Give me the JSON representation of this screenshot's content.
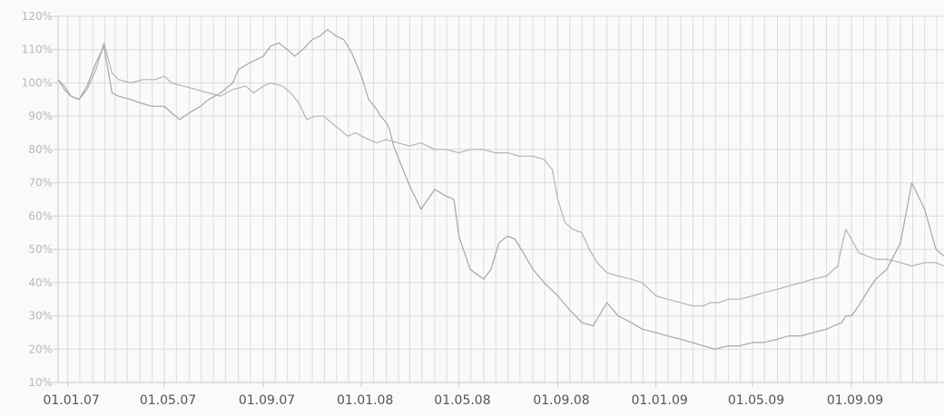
{
  "chart_data": {
    "type": "line",
    "y_tick_labels": [
      "10%",
      "20%",
      "30%",
      "40%",
      "50%",
      "60%",
      "70%",
      "80%",
      "90%",
      "100%",
      "110%",
      "120%"
    ],
    "x_tick_labels": [
      "01.01.07",
      "01.05.07",
      "01.09.07",
      "01.01.08",
      "01.05.08",
      "01.09.08",
      "01.01.09",
      "01.05.09",
      "01.09.09"
    ],
    "ylim": [
      10,
      120
    ],
    "xlim": [
      "2006-12-20",
      "2009-12-25"
    ],
    "grid": true,
    "colors": {
      "grid": "#dcdcdc",
      "series_a": "#b4b4b4",
      "series_b": "#a6a6a6",
      "y_labels": "#b8b8b8",
      "x_labels": "#555555"
    },
    "series": [
      {
        "x": [
          "2006-12-20",
          "2006-12-28",
          "2007-01-05",
          "2007-01-15",
          "2007-01-25",
          "2007-02-05",
          "2007-02-15",
          "2007-02-25",
          "2007-03-05",
          "2007-03-20",
          "2007-04-05",
          "2007-04-20",
          "2007-05-01",
          "2007-05-10",
          "2007-05-25",
          "2007-06-10",
          "2007-06-25",
          "2007-07-10",
          "2007-07-25",
          "2007-08-10",
          "2007-08-20",
          "2007-09-01",
          "2007-09-10",
          "2007-09-25",
          "2007-10-05",
          "2007-10-15",
          "2007-10-25",
          "2007-11-05",
          "2007-11-15",
          "2007-11-25",
          "2007-12-05",
          "2007-12-15",
          "2007-12-25",
          "2008-01-01",
          "2008-01-10",
          "2008-01-20",
          "2008-02-01",
          "2008-02-15",
          "2008-03-01",
          "2008-03-15",
          "2008-04-01",
          "2008-04-15",
          "2008-05-01",
          "2008-05-15",
          "2008-06-01",
          "2008-06-15",
          "2008-07-01",
          "2008-07-15",
          "2008-08-01",
          "2008-08-15",
          "2008-08-25",
          "2008-09-01",
          "2008-09-10",
          "2008-09-20",
          "2008-10-01",
          "2008-10-10",
          "2008-10-20",
          "2008-11-01",
          "2008-11-15",
          "2008-12-01",
          "2008-12-15",
          "2009-01-01",
          "2009-01-15",
          "2009-02-01",
          "2009-02-15",
          "2009-03-01",
          "2009-03-10",
          "2009-03-20",
          "2009-04-01",
          "2009-04-15",
          "2009-05-01",
          "2009-05-15",
          "2009-06-01",
          "2009-06-15",
          "2009-07-01",
          "2009-07-15",
          "2009-08-01",
          "2009-08-15",
          "2009-08-20",
          "2009-08-25",
          "2009-09-01",
          "2009-09-10",
          "2009-09-20",
          "2009-10-01",
          "2009-10-15",
          "2009-11-01",
          "2009-11-15",
          "2009-12-01",
          "2009-12-15",
          "2009-12-25"
        ],
        "values": [
          101,
          99,
          96,
          95,
          98,
          104,
          112,
          103,
          101,
          100,
          101,
          101,
          102,
          100,
          99,
          98,
          97,
          96,
          98,
          99,
          97,
          99,
          100,
          99,
          97,
          94,
          89,
          90,
          90,
          88,
          86,
          84,
          85,
          84,
          83,
          82,
          83,
          82,
          81,
          82,
          80,
          80,
          79,
          80,
          80,
          79,
          79,
          78,
          78,
          77,
          74,
          65,
          58,
          56,
          55,
          50,
          46,
          43,
          42,
          41,
          40,
          36,
          35,
          34,
          33,
          33,
          34,
          34,
          35,
          35,
          36,
          37,
          38,
          39,
          40,
          41,
          42,
          45,
          51,
          56,
          53,
          49,
          48,
          47,
          47,
          46,
          45,
          46,
          46,
          45
        ]
      },
      {
        "x": [
          "2006-12-20",
          "2006-12-28",
          "2007-01-05",
          "2007-01-15",
          "2007-01-25",
          "2007-02-05",
          "2007-02-15",
          "2007-02-25",
          "2007-03-05",
          "2007-03-20",
          "2007-04-01",
          "2007-04-15",
          "2007-05-01",
          "2007-05-10",
          "2007-05-20",
          "2007-06-01",
          "2007-06-15",
          "2007-06-25",
          "2007-07-10",
          "2007-07-25",
          "2007-08-01",
          "2007-08-15",
          "2007-09-01",
          "2007-09-10",
          "2007-09-20",
          "2007-10-01",
          "2007-10-10",
          "2007-10-20",
          "2007-11-01",
          "2007-11-10",
          "2007-11-20",
          "2007-12-01",
          "2007-12-10",
          "2007-12-20",
          "2008-01-01",
          "2008-01-10",
          "2008-01-20",
          "2008-01-25",
          "2008-02-01",
          "2008-02-05",
          "2008-02-10",
          "2008-02-20",
          "2008-03-01",
          "2008-03-15",
          "2008-04-01",
          "2008-04-15",
          "2008-04-25",
          "2008-05-01",
          "2008-05-15",
          "2008-06-01",
          "2008-06-10",
          "2008-06-20",
          "2008-07-01",
          "2008-07-10",
          "2008-07-20",
          "2008-08-01",
          "2008-08-15",
          "2008-09-01",
          "2008-09-15",
          "2008-10-01",
          "2008-10-15",
          "2008-11-01",
          "2008-11-15",
          "2008-12-01",
          "2008-12-15",
          "2009-01-01",
          "2009-01-15",
          "2009-02-01",
          "2009-02-15",
          "2009-03-01",
          "2009-03-15",
          "2009-04-01",
          "2009-04-15",
          "2009-05-01",
          "2009-05-15",
          "2009-06-01",
          "2009-06-15",
          "2009-07-01",
          "2009-07-15",
          "2009-08-01",
          "2009-08-10",
          "2009-08-20",
          "2009-08-25",
          "2009-09-01",
          "2009-09-10",
          "2009-09-20",
          "2009-10-01",
          "2009-10-15",
          "2009-11-01",
          "2009-11-15",
          "2009-12-01",
          "2009-12-15",
          "2009-12-25"
        ],
        "values": [
          101,
          98,
          96,
          95,
          99,
          106,
          111,
          97,
          96,
          95,
          94,
          93,
          93,
          91,
          89,
          91,
          93,
          95,
          97,
          100,
          104,
          106,
          108,
          111,
          112,
          110,
          108,
          110,
          113,
          114,
          116,
          114,
          113,
          109,
          102,
          95,
          92,
          90,
          88,
          86,
          81,
          75,
          69,
          62,
          68,
          66,
          65,
          54,
          44,
          41,
          44,
          52,
          54,
          53,
          49,
          44,
          40,
          36,
          32,
          28,
          27,
          34,
          30,
          28,
          26,
          25,
          24,
          23,
          22,
          21,
          20,
          21,
          21,
          22,
          22,
          23,
          24,
          24,
          25,
          26,
          27,
          28,
          30,
          30,
          33,
          37,
          41,
          44,
          52,
          70,
          62,
          50,
          48
        ]
      }
    ]
  }
}
